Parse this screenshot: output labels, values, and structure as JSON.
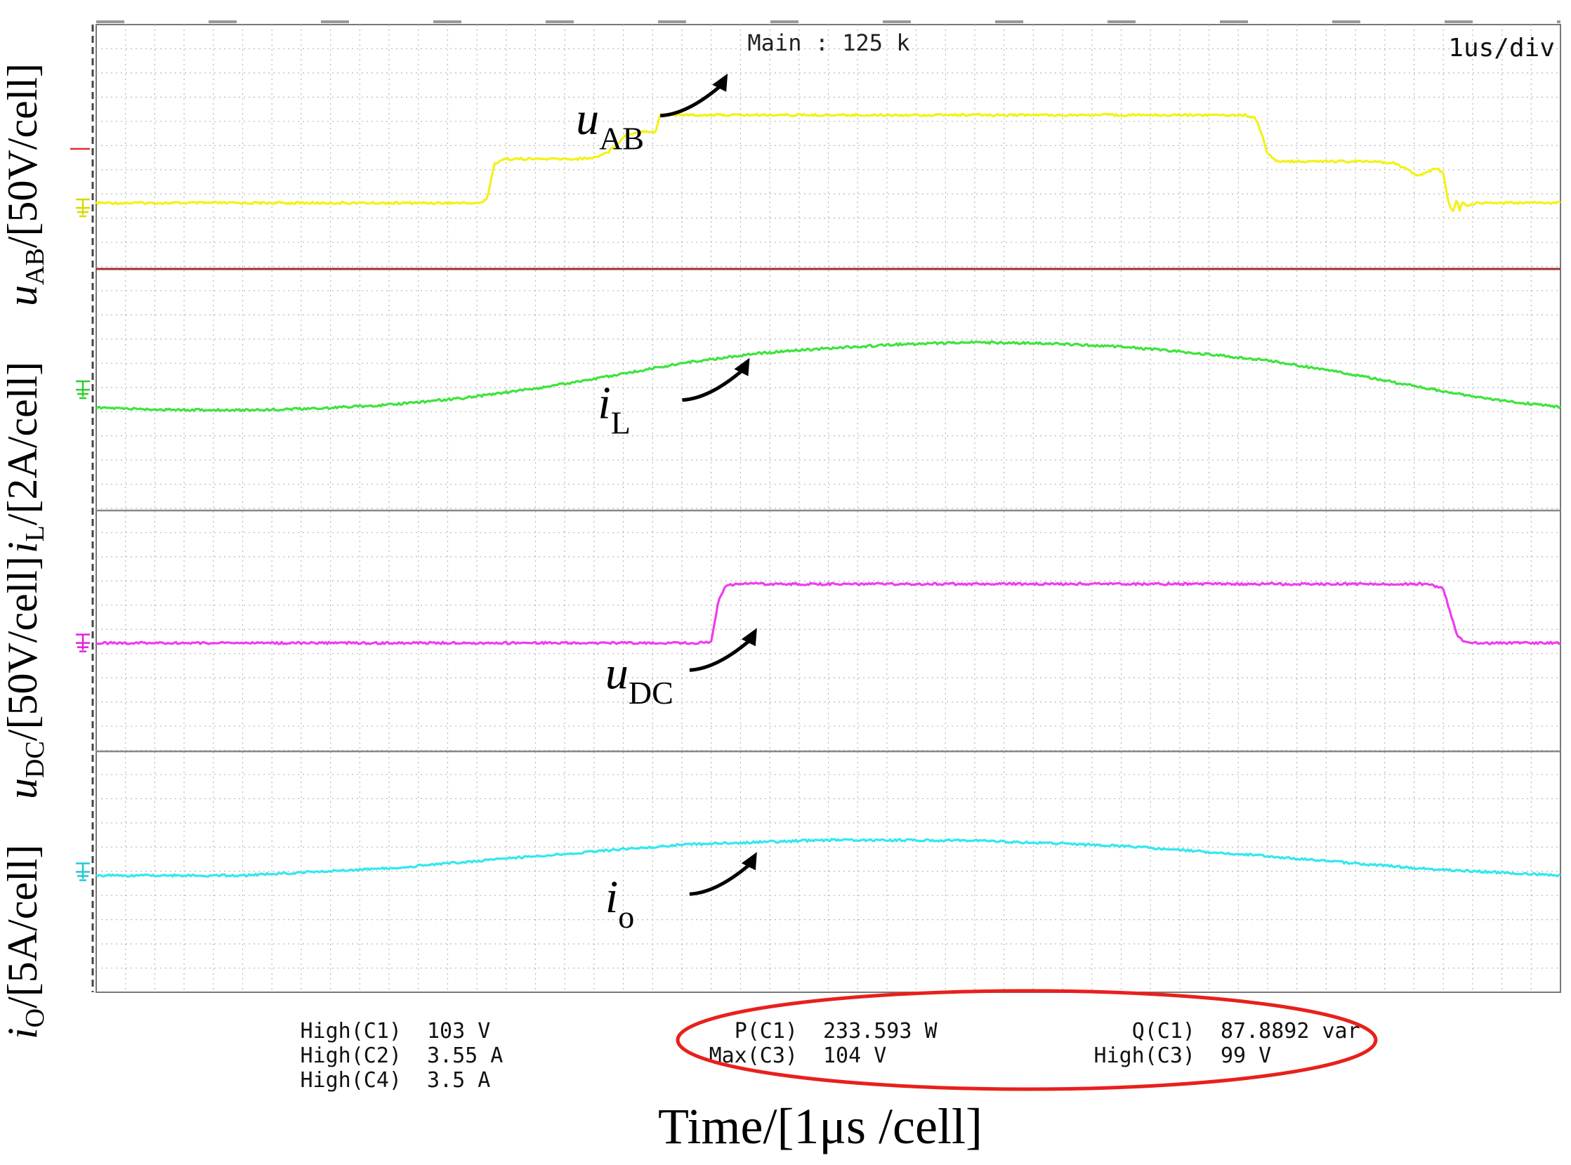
{
  "chart_data": {
    "type": "line",
    "title": "",
    "xlabel": "Time/[1μs /cell]",
    "header": {
      "center": "Main : 125 k",
      "right": "1us/div"
    },
    "y_labels": [
      {
        "var": "i",
        "sub": "O",
        "unit": "/[5A/cell]"
      },
      {
        "var": "u",
        "sub": "DC",
        "unit": "/[50V/cell]"
      },
      {
        "var": "i",
        "sub": "L",
        "unit": "/[2A/cell]"
      },
      {
        "var": "u",
        "sub": "AB",
        "unit": "/[50V/cell]"
      }
    ],
    "x_range_us": [
      0,
      10
    ],
    "grid": true,
    "panels": [
      {
        "id": "uAB",
        "var": "u",
        "sub": "AB",
        "color": "#f2f21a",
        "ground_color": "#d8d800",
        "ylim": [
          -50,
          150
        ],
        "points": [
          [
            0,
            4
          ],
          [
            2.63,
            4
          ],
          [
            2.67,
            8
          ],
          [
            2.72,
            36
          ],
          [
            2.78,
            40
          ],
          [
            3.28,
            40
          ],
          [
            3.4,
            41
          ],
          [
            3.5,
            46
          ],
          [
            3.58,
            55
          ],
          [
            3.62,
            60
          ],
          [
            3.75,
            63
          ],
          [
            3.82,
            62
          ],
          [
            3.85,
            76
          ],
          [
            3.9,
            76
          ],
          [
            6.2,
            76
          ],
          [
            7.85,
            76
          ],
          [
            7.92,
            73
          ],
          [
            7.96,
            60
          ],
          [
            8.0,
            45
          ],
          [
            8.06,
            38
          ],
          [
            8.6,
            38
          ],
          [
            8.85,
            37
          ],
          [
            8.95,
            32
          ],
          [
            9.03,
            26
          ],
          [
            9.1,
            30
          ],
          [
            9.16,
            32
          ],
          [
            9.2,
            28
          ],
          [
            9.24,
            2
          ],
          [
            9.27,
            -4
          ],
          [
            9.29,
            7
          ],
          [
            9.31,
            -2
          ],
          [
            9.33,
            5
          ],
          [
            9.36,
            1
          ],
          [
            9.42,
            4
          ],
          [
            10,
            4
          ]
        ],
        "label_pos": [
          3.9,
          72
        ]
      },
      {
        "id": "iL",
        "var": "i",
        "sub": "L",
        "color": "#3ee33e",
        "ground_color": "#2ecc2e",
        "ylim": [
          -5,
          5
        ],
        "points": [
          [
            0,
            -0.75
          ],
          [
            0.5,
            -0.83
          ],
          [
            1,
            -0.84
          ],
          [
            1.5,
            -0.78
          ],
          [
            2,
            -0.62
          ],
          [
            2.5,
            -0.35
          ],
          [
            3,
            0.05
          ],
          [
            3.5,
            0.55
          ],
          [
            4,
            1.1
          ],
          [
            4.5,
            1.5
          ],
          [
            5,
            1.72
          ],
          [
            5.5,
            1.88
          ],
          [
            6,
            1.96
          ],
          [
            6.5,
            1.92
          ],
          [
            7,
            1.78
          ],
          [
            7.5,
            1.52
          ],
          [
            8,
            1.22
          ],
          [
            8.5,
            0.72
          ],
          [
            9,
            0.15
          ],
          [
            9.5,
            -0.38
          ],
          [
            10,
            -0.72
          ]
        ],
        "label_pos": [
          4.05,
          -0.6
        ]
      },
      {
        "id": "uDC",
        "var": "u",
        "sub": "DC",
        "color": "#ef3cef",
        "ground_color": "#e020e0",
        "ylim": [
          -90,
          110
        ],
        "points": [
          [
            0,
            0
          ],
          [
            4.1,
            0
          ],
          [
            4.2,
            1
          ],
          [
            4.25,
            35
          ],
          [
            4.3,
            48
          ],
          [
            4.4,
            49
          ],
          [
            9.1,
            49
          ],
          [
            9.2,
            45
          ],
          [
            9.26,
            20
          ],
          [
            9.3,
            5
          ],
          [
            9.36,
            0
          ],
          [
            10,
            0
          ]
        ],
        "label_pos": [
          4.1,
          -26
        ]
      },
      {
        "id": "iO",
        "var": "i",
        "sub": "o",
        "color": "#33e8ee",
        "ground_color": "#22c8d8",
        "ylim": [
          -10,
          10
        ],
        "points": [
          [
            0,
            -0.3
          ],
          [
            1,
            -0.3
          ],
          [
            2,
            0.3
          ],
          [
            3,
            1.3
          ],
          [
            4,
            2.25
          ],
          [
            5,
            2.65
          ],
          [
            6,
            2.6
          ],
          [
            7,
            2.15
          ],
          [
            8,
            1.3
          ],
          [
            9,
            0.3
          ],
          [
            10,
            -0.3
          ]
        ],
        "label_pos": [
          4.1,
          -2.2
        ]
      }
    ],
    "measurements": {
      "left": [
        {
          "name": "High(C1)",
          "value": "103 V"
        },
        {
          "name": "High(C2)",
          "value": "3.55 A"
        },
        {
          "name": "High(C4)",
          "value": "3.5 A"
        }
      ],
      "middle": [
        {
          "name": "P(C1)",
          "value": "233.593 W"
        },
        {
          "name": "Max(C3)",
          "value": "104 V"
        }
      ],
      "right": [
        {
          "name": "Q(C1)",
          "value": "87.8892 var"
        },
        {
          "name": "High(C3)",
          "value": "99 V"
        }
      ]
    },
    "highlight": {
      "color": "#e8201c"
    }
  }
}
